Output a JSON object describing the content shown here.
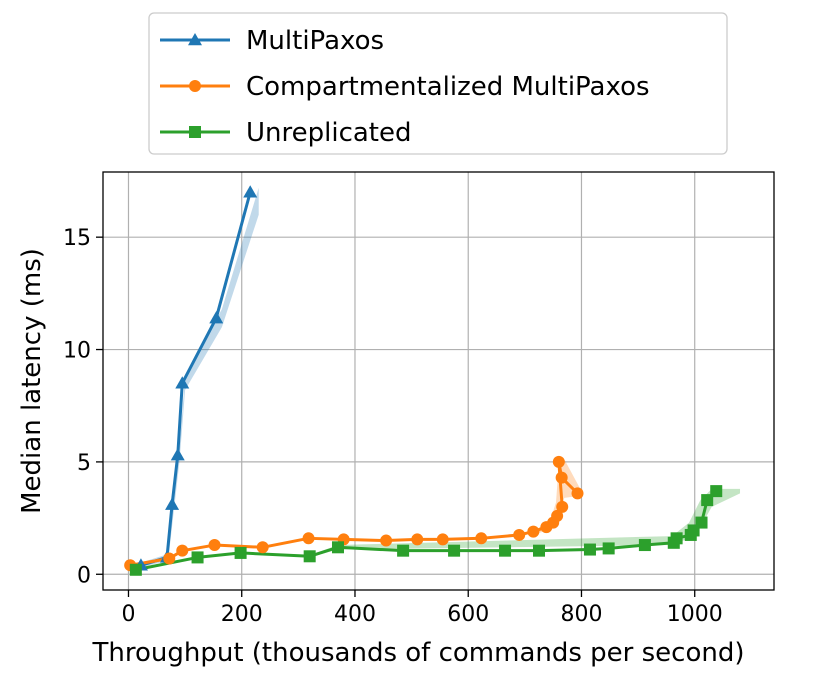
{
  "chart_data": {
    "type": "line",
    "xlabel": "Throughput (thousands of commands per second)",
    "ylabel": "Median latency (ms)",
    "xlim": [
      -45,
      1140
    ],
    "ylim": [
      -0.7,
      17.9
    ],
    "xticks": [
      0,
      200,
      400,
      600,
      800,
      1000
    ],
    "yticks": [
      0,
      5,
      10,
      15
    ],
    "grid": true,
    "legend_position": "top-center",
    "series": [
      {
        "name": "MultiPaxos",
        "color": "#1f77b4",
        "marker": "triangle",
        "x": [
          22,
          68,
          77,
          87,
          95,
          155,
          215
        ],
        "y": [
          0.4,
          0.75,
          3.1,
          5.3,
          8.5,
          11.4,
          17.0
        ],
        "band_x": [
          20,
          70,
          80,
          90,
          100,
          165,
          230
        ],
        "band_low": [
          0.3,
          0.6,
          2.8,
          5.0,
          8.2,
          11.0,
          16.0
        ],
        "band_high": [
          0.5,
          0.9,
          3.4,
          5.6,
          8.8,
          11.8,
          17.2
        ]
      },
      {
        "name": "Compartmentalized MultiPaxos",
        "color": "#ff7f0e",
        "marker": "circle",
        "x": [
          3,
          72,
          95,
          152,
          237,
          318,
          380,
          455,
          510,
          555,
          623,
          690,
          715,
          738,
          750,
          757,
          766,
          760,
          765,
          793
        ],
        "y": [
          0.4,
          0.7,
          1.05,
          1.3,
          1.2,
          1.6,
          1.55,
          1.5,
          1.55,
          1.55,
          1.6,
          1.75,
          1.9,
          2.1,
          2.3,
          2.6,
          3.0,
          5.0,
          4.3,
          3.6
        ],
        "band_x": [
          720,
          745,
          755,
          760,
          770,
          800
        ],
        "band_low": [
          1.8,
          2.0,
          2.4,
          2.9,
          3.4,
          3.5
        ],
        "band_high": [
          2.0,
          2.4,
          3.2,
          4.9,
          5.1,
          3.7
        ]
      },
      {
        "name": "Unreplicated",
        "color": "#2ca02c",
        "marker": "square",
        "x": [
          13,
          122,
          198,
          320,
          370,
          485,
          575,
          665,
          725,
          815,
          848,
          912,
          963,
          968,
          993,
          998,
          1012,
          1022,
          1038
        ],
        "y": [
          0.2,
          0.75,
          0.95,
          0.8,
          1.2,
          1.05,
          1.05,
          1.05,
          1.05,
          1.1,
          1.15,
          1.3,
          1.4,
          1.6,
          1.75,
          1.95,
          2.3,
          3.3,
          3.7
        ],
        "band_x": [
          320,
          370,
          960,
          990,
          1010,
          1030,
          1080
        ],
        "band_low": [
          0.75,
          1.1,
          1.3,
          1.6,
          2.1,
          3.0,
          3.6
        ],
        "band_high": [
          0.85,
          1.3,
          1.7,
          2.3,
          3.3,
          3.8,
          3.8
        ]
      }
    ]
  }
}
